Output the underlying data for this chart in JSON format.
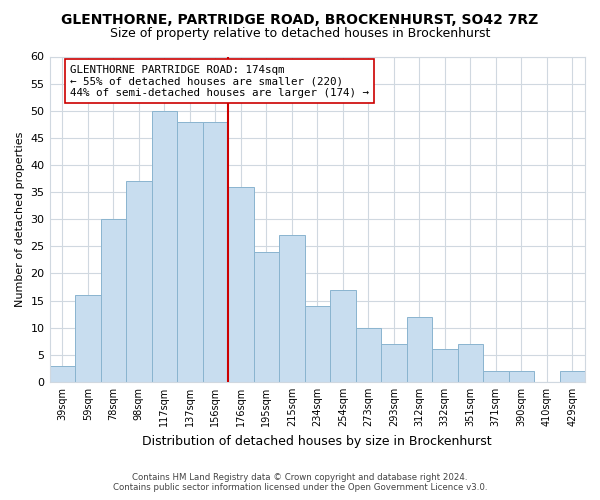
{
  "title": "GLENTHORNE, PARTRIDGE ROAD, BROCKENHURST, SO42 7RZ",
  "subtitle": "Size of property relative to detached houses in Brockenhurst",
  "xlabel": "Distribution of detached houses by size in Brockenhurst",
  "ylabel": "Number of detached properties",
  "footer_line1": "Contains HM Land Registry data © Crown copyright and database right 2024.",
  "footer_line2": "Contains public sector information licensed under the Open Government Licence v3.0.",
  "bar_labels": [
    "39sqm",
    "59sqm",
    "78sqm",
    "98sqm",
    "117sqm",
    "137sqm",
    "156sqm",
    "176sqm",
    "195sqm",
    "215sqm",
    "234sqm",
    "254sqm",
    "273sqm",
    "293sqm",
    "312sqm",
    "332sqm",
    "351sqm",
    "371sqm",
    "390sqm",
    "410sqm",
    "429sqm"
  ],
  "bar_values": [
    3,
    16,
    30,
    37,
    50,
    48,
    48,
    36,
    24,
    27,
    14,
    17,
    10,
    7,
    12,
    6,
    7,
    2,
    2,
    0,
    2
  ],
  "bar_color": "#c8ddef",
  "bar_edge_color": "#8ab4cf",
  "vline_x_index": 7,
  "vline_color": "#cc0000",
  "annotation_title": "GLENTHORNE PARTRIDGE ROAD: 174sqm",
  "annotation_line1": "← 55% of detached houses are smaller (220)",
  "annotation_line2": "44% of semi-detached houses are larger (174) →",
  "annotation_box_color": "#ffffff",
  "annotation_box_edge": "#cc0000",
  "ylim": [
    0,
    60
  ],
  "yticks": [
    0,
    5,
    10,
    15,
    20,
    25,
    30,
    35,
    40,
    45,
    50,
    55,
    60
  ],
  "plot_bg_color": "#ffffff",
  "fig_bg_color": "#ffffff",
  "grid_color": "#d0d8e0",
  "title_fontsize": 10,
  "subtitle_fontsize": 9,
  "ylabel_fontsize": 8,
  "xlabel_fontsize": 9
}
